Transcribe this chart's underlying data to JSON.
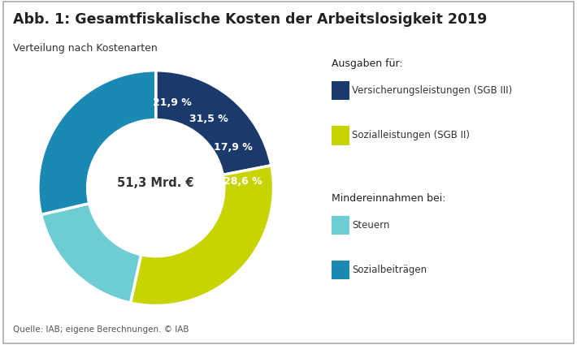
{
  "title": "Abb. 1: Gesamtfiskalische Kosten der Arbeitslosigkeit 2019",
  "subtitle": "Verteilung nach Kostenarten",
  "center_text": "51,3 Mrd. €",
  "source": "Quelle: IAB; eigene Berechnungen. © IAB",
  "slices": [
    21.9,
    31.5,
    17.9,
    28.6
  ],
  "colors": [
    "#1a3a6b",
    "#c8d400",
    "#6ecdd2",
    "#1a8ab5"
  ],
  "labels": [
    "21,9 %",
    "31,5 %",
    "17,9 %",
    "28,6 %"
  ],
  "legend_title_1": "Ausgaben für:",
  "legend_item_1": "Versicherungsleistungen (SGB III)",
  "legend_item_2": "Sozialleistungen (SGB II)",
  "legend_title_2": "Mindereinnahmen bei:",
  "legend_item_3": "Steuern",
  "legend_item_4": "Sozialbeiträgen",
  "legend_colors": [
    "#1a3a6b",
    "#c8d400",
    "#6ecdd2",
    "#1a8ab5"
  ],
  "background_color": "#ffffff",
  "border_color": "#aaaaaa",
  "start_angle": 90
}
